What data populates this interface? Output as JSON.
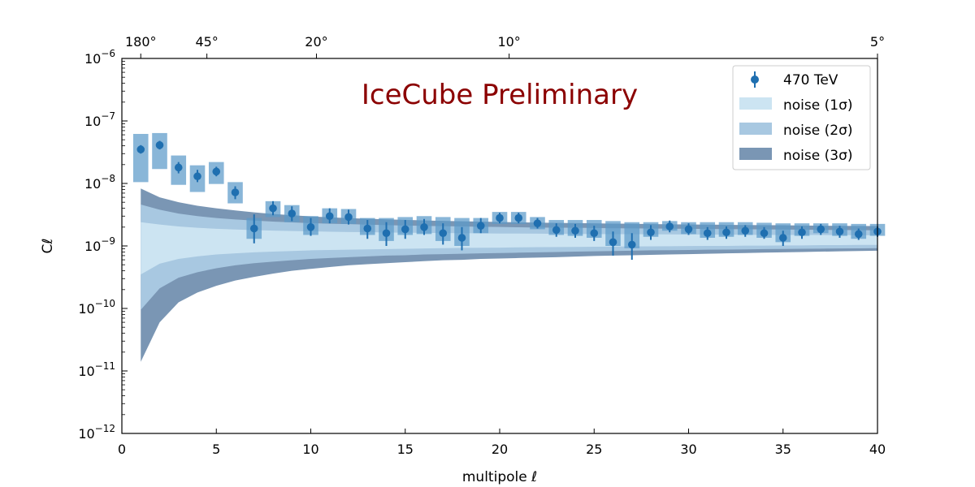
{
  "chart_data": {
    "type": "scatter",
    "title": "",
    "annotation": "IceCube Preliminary",
    "xlabel": "multipole ℓ",
    "ylabel": "Cℓ",
    "xlim": [
      0,
      40
    ],
    "ylim_log10": [
      -12,
      -6
    ],
    "x_ticks": [
      "0",
      "5",
      "10",
      "15",
      "20",
      "25",
      "30",
      "35",
      "40"
    ],
    "y_tick_exponents": [
      "−12",
      "−11",
      "−10",
      "−9",
      "−8",
      "−7",
      "−6"
    ],
    "y_tick_base": "10",
    "top_axis_ticks": [
      {
        "ell": 1,
        "label": "180°"
      },
      {
        "ell": 4.5,
        "label": "45°"
      },
      {
        "ell": 10.3,
        "label": "20°"
      },
      {
        "ell": 20.5,
        "label": "10°"
      },
      {
        "ell": 40,
        "label": "5°"
      }
    ],
    "legend": {
      "position": "top-right",
      "entries": [
        "470 TeV",
        "noise (1σ)",
        "noise (2σ)",
        "noise (3σ)"
      ]
    },
    "colors": {
      "data": "#1f6fb0",
      "box": "#5b9ac9",
      "band1": "#cce4f2",
      "band2": "#a8c8e1",
      "band3": "#7a96b4",
      "annotation": "#8b0000"
    },
    "series": [
      {
        "name": "470 TeV",
        "ell": [
          1,
          2,
          3,
          4,
          5,
          6,
          7,
          8,
          9,
          10,
          11,
          12,
          13,
          14,
          15,
          16,
          17,
          18,
          19,
          20,
          21,
          22,
          23,
          24,
          25,
          26,
          27,
          28,
          29,
          30,
          31,
          32,
          33,
          34,
          35,
          36,
          37,
          38,
          39,
          40
        ],
        "cl": [
          3.5e-08,
          4.1e-08,
          1.8e-08,
          1.3e-08,
          1.55e-08,
          7.2e-09,
          1.9e-09,
          4e-09,
          3.3e-09,
          2e-09,
          3e-09,
          2.9e-09,
          1.9e-09,
          1.6e-09,
          1.85e-09,
          2e-09,
          1.6e-09,
          1.35e-09,
          2.1e-09,
          2.8e-09,
          2.8e-09,
          2.3e-09,
          1.8e-09,
          1.75e-09,
          1.6e-09,
          1.15e-09,
          1.05e-09,
          1.65e-09,
          2.05e-09,
          1.85e-09,
          1.6e-09,
          1.65e-09,
          1.75e-09,
          1.6e-09,
          1.35e-09,
          1.65e-09,
          1.85e-09,
          1.7e-09,
          1.55e-09,
          1.7e-09
        ],
        "err_low": [
          3e-08,
          3.5e-08,
          1.45e-08,
          1.05e-08,
          1.3e-08,
          5.6e-09,
          1.1e-09,
          3.1e-09,
          2.5e-09,
          1.45e-09,
          2.3e-09,
          2.2e-09,
          1.3e-09,
          1e-09,
          1.3e-09,
          1.5e-09,
          1.05e-09,
          8.5e-10,
          1.6e-09,
          2.3e-09,
          2.3e-09,
          1.9e-09,
          1.4e-09,
          1.35e-09,
          1.2e-09,
          7e-10,
          6e-10,
          1.25e-09,
          1.65e-09,
          1.5e-09,
          1.25e-09,
          1.3e-09,
          1.4e-09,
          1.3e-09,
          1e-09,
          1.3e-09,
          1.5e-09,
          1.35e-09,
          1.25e-09,
          1.4e-09
        ],
        "err_high": [
          4.1e-08,
          4.8e-08,
          2.2e-08,
          1.65e-08,
          1.85e-08,
          9e-09,
          3.2e-09,
          5.2e-09,
          4.3e-09,
          2.8e-09,
          4e-09,
          3.8e-09,
          2.6e-09,
          2.4e-09,
          2.6e-09,
          2.7e-09,
          2.3e-09,
          2e-09,
          2.8e-09,
          3.4e-09,
          3.4e-09,
          2.8e-09,
          2.3e-09,
          2.25e-09,
          2.1e-09,
          1.7e-09,
          1.6e-09,
          2.15e-09,
          2.55e-09,
          2.3e-09,
          2e-09,
          2.05e-09,
          2.15e-09,
          2e-09,
          1.75e-09,
          2.05e-09,
          2.25e-09,
          2.1e-09,
          1.9e-09,
          2.05e-09
        ],
        "box_low": [
          1.05e-08,
          1.7e-08,
          9.5e-09,
          7.3e-09,
          9.8e-09,
          4.8e-09,
          1.3e-09,
          2.9e-09,
          2.4e-09,
          1.5e-09,
          2.3e-09,
          2.25e-09,
          1.5e-09,
          1.2e-09,
          1.5e-09,
          1.55e-09,
          1.2e-09,
          1e-09,
          1.6e-09,
          2.25e-09,
          2.25e-09,
          1.85e-09,
          1.5e-09,
          1.45e-09,
          1.35e-09,
          1e-09,
          9.2e-10,
          1.4e-09,
          1.75e-09,
          1.55e-09,
          1.35e-09,
          1.4e-09,
          1.5e-09,
          1.35e-09,
          1.15e-09,
          1.45e-09,
          1.6e-09,
          1.45e-09,
          1.3e-09,
          1.45e-09
        ],
        "box_high": [
          6.2e-08,
          6.4e-08,
          2.8e-08,
          1.95e-08,
          2.2e-08,
          1.05e-08,
          2.8e-09,
          5.2e-09,
          4.5e-09,
          3e-09,
          4e-09,
          3.9e-09,
          2.8e-09,
          2.8e-09,
          2.9e-09,
          3e-09,
          2.9e-09,
          2.8e-09,
          2.8e-09,
          3.5e-09,
          3.5e-09,
          2.9e-09,
          2.6e-09,
          2.6e-09,
          2.6e-09,
          2.5e-09,
          2.4e-09,
          2.4e-09,
          2.5e-09,
          2.4e-09,
          2.4e-09,
          2.4e-09,
          2.4e-09,
          2.35e-09,
          2.3e-09,
          2.3e-09,
          2.3e-09,
          2.3e-09,
          2.25e-09,
          2.25e-09
        ]
      }
    ],
    "noise_bands": {
      "ell": [
        1,
        2,
        3,
        4,
        5,
        6,
        7,
        8,
        9,
        10,
        11,
        12,
        13,
        14,
        15,
        16,
        17,
        18,
        19,
        20,
        21,
        22,
        23,
        24,
        25,
        26,
        27,
        28,
        29,
        30,
        31,
        32,
        33,
        34,
        35,
        36,
        37,
        38,
        39,
        40
      ],
      "sigma3_low": [
        1.4e-11,
        6e-11,
        1.25e-10,
        1.8e-10,
        2.3e-10,
        2.8e-10,
        3.2e-10,
        3.6e-10,
        4e-10,
        4.3e-10,
        4.6e-10,
        4.9e-10,
        5.1e-10,
        5.3e-10,
        5.5e-10,
        5.7e-10,
        5.9e-10,
        6e-10,
        6.2e-10,
        6.3e-10,
        6.4e-10,
        6.5e-10,
        6.6e-10,
        6.75e-10,
        6.9e-10,
        7e-10,
        7.1e-10,
        7.2e-10,
        7.3e-10,
        7.4e-10,
        7.5e-10,
        7.6e-10,
        7.7e-10,
        7.8e-10,
        7.9e-10,
        8e-10,
        8.1e-10,
        8.2e-10,
        8.3e-10,
        8.4e-10
      ],
      "sigma2_low": [
        9.5e-11,
        2.1e-10,
        3.1e-10,
        3.8e-10,
        4.4e-10,
        4.9e-10,
        5.3e-10,
        5.6e-10,
        5.9e-10,
        6.2e-10,
        6.4e-10,
        6.6e-10,
        6.8e-10,
        7e-10,
        7.1e-10,
        7.3e-10,
        7.4e-10,
        7.5e-10,
        7.6e-10,
        7.7e-10,
        7.8e-10,
        7.9e-10,
        8e-10,
        8.1e-10,
        8.2e-10,
        8.3e-10,
        8.4e-10,
        8.5e-10,
        8.55e-10,
        8.6e-10,
        8.7e-10,
        8.75e-10,
        8.8e-10,
        8.9e-10,
        8.95e-10,
        9e-10,
        9.05e-10,
        9.1e-10,
        9.15e-10,
        9.2e-10
      ],
      "sigma1_low": [
        3.5e-10,
        5.2e-10,
        6.2e-10,
        6.8e-10,
        7.3e-10,
        7.6e-10,
        7.9e-10,
        8.1e-10,
        8.3e-10,
        8.5e-10,
        8.6e-10,
        8.7e-10,
        8.8e-10,
        8.9e-10,
        9e-10,
        9.1e-10,
        9.2e-10,
        9.3e-10,
        9.35e-10,
        9.4e-10,
        9.5e-10,
        9.55e-10,
        9.6e-10,
        9.65e-10,
        9.7e-10,
        9.75e-10,
        9.8e-10,
        9.85e-10,
        9.9e-10,
        9.95e-10,
        1e-09,
        1e-09,
        1.01e-09,
        1.01e-09,
        1.02e-09,
        1.02e-09,
        1.03e-09,
        1.03e-09,
        1.04e-09,
        1.04e-09
      ],
      "sigma1_high": [
        2.4e-09,
        2.2e-09,
        2.05e-09,
        1.95e-09,
        1.88e-09,
        1.83e-09,
        1.79e-09,
        1.76e-09,
        1.73e-09,
        1.71e-09,
        1.69e-09,
        1.67e-09,
        1.66e-09,
        1.64e-09,
        1.63e-09,
        1.62e-09,
        1.61e-09,
        1.6e-09,
        1.59e-09,
        1.58e-09,
        1.575e-09,
        1.57e-09,
        1.56e-09,
        1.555e-09,
        1.55e-09,
        1.545e-09,
        1.54e-09,
        1.535e-09,
        1.53e-09,
        1.525e-09,
        1.52e-09,
        1.515e-09,
        1.51e-09,
        1.505e-09,
        1.5e-09,
        1.5e-09,
        1.495e-09,
        1.49e-09,
        1.485e-09,
        1.48e-09
      ],
      "sigma2_high": [
        4.6e-09,
        3.8e-09,
        3.3e-09,
        3e-09,
        2.8e-09,
        2.65e-09,
        2.55e-09,
        2.45e-09,
        2.38e-09,
        2.32e-09,
        2.27e-09,
        2.23e-09,
        2.19e-09,
        2.15e-09,
        2.12e-09,
        2.09e-09,
        2.07e-09,
        2.05e-09,
        2.03e-09,
        2.01e-09,
        1.99e-09,
        1.97e-09,
        1.96e-09,
        1.95e-09,
        1.94e-09,
        1.92e-09,
        1.91e-09,
        1.9e-09,
        1.89e-09,
        1.88e-09,
        1.87e-09,
        1.86e-09,
        1.85e-09,
        1.84e-09,
        1.83e-09,
        1.82e-09,
        1.81e-09,
        1.8e-09,
        1.79e-09,
        1.78e-09
      ],
      "sigma3_high": [
        8.3e-09,
        6e-09,
        5e-09,
        4.4e-09,
        4e-09,
        3.7e-09,
        3.45e-09,
        3.25e-09,
        3.1e-09,
        2.97e-09,
        2.87e-09,
        2.79e-09,
        2.72e-09,
        2.66e-09,
        2.61e-09,
        2.56e-09,
        2.52e-09,
        2.48e-09,
        2.45e-09,
        2.42e-09,
        2.39e-09,
        2.36e-09,
        2.34e-09,
        2.32e-09,
        2.3e-09,
        2.28e-09,
        2.26e-09,
        2.24e-09,
        2.22e-09,
        2.21e-09,
        2.19e-09,
        2.18e-09,
        2.16e-09,
        2.15e-09,
        2.14e-09,
        2.12e-09,
        2.11e-09,
        2.1e-09,
        2.09e-09,
        2.08e-09
      ]
    }
  }
}
